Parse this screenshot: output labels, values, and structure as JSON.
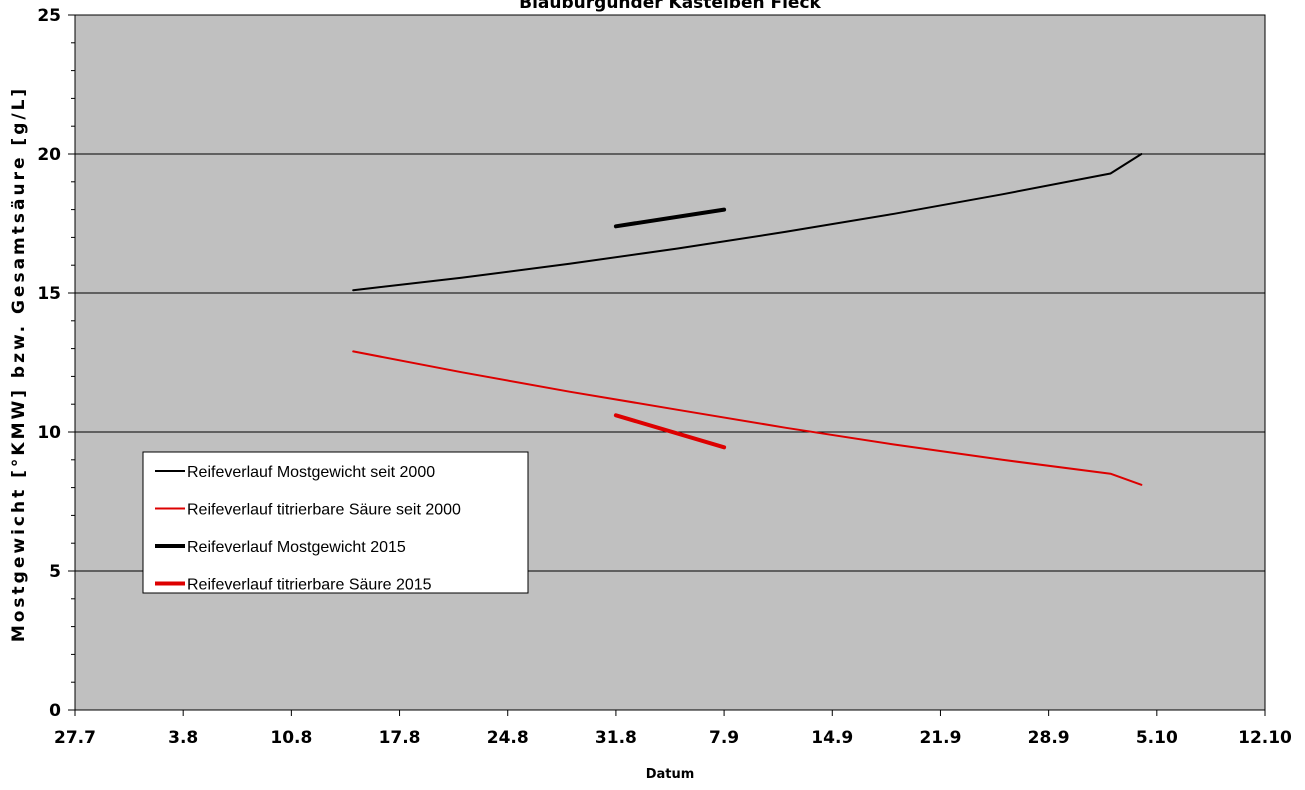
{
  "chart_data": {
    "type": "line",
    "title": "Blauburgunder Kastelben Fleck",
    "xlabel": "Datum",
    "ylabel": "Mostgewicht [°KMW] bzw. Gesamtsäure [g/L]",
    "x_type": "date",
    "x_ticks": [
      "27.7",
      "3.8",
      "10.8",
      "17.8",
      "24.8",
      "31.8",
      "7.9",
      "14.9",
      "21.9",
      "28.9",
      "5.10",
      "12.10"
    ],
    "x_tick_dates": [
      "2015-07-27",
      "2015-08-03",
      "2015-08-10",
      "2015-08-17",
      "2015-08-24",
      "2015-08-31",
      "2015-09-07",
      "2015-09-14",
      "2015-09-21",
      "2015-09-28",
      "2015-10-05",
      "2015-10-12"
    ],
    "xlim": [
      "2015-07-27",
      "2015-10-12"
    ],
    "ylim": [
      0,
      25
    ],
    "y_ticks": [
      0,
      5,
      10,
      15,
      20,
      25
    ],
    "grid": {
      "y_major": true,
      "y_minor_ticks": true
    },
    "background": "#c0c0c0",
    "legend_position": "lower-left",
    "series": [
      {
        "name": "Reifeverlauf Mostgewicht seit 2000",
        "color": "#000000",
        "style": "thin",
        "points": [
          [
            "2015-08-14",
            15.1
          ],
          [
            "2015-08-21",
            15.55
          ],
          [
            "2015-08-28",
            16.05
          ],
          [
            "2015-09-04",
            16.6
          ],
          [
            "2015-09-11",
            17.2
          ],
          [
            "2015-09-18",
            17.85
          ],
          [
            "2015-09-25",
            18.55
          ],
          [
            "2015-10-02",
            19.3
          ],
          [
            "2015-10-04",
            20.0
          ]
        ]
      },
      {
        "name": "Reifeverlauf titrierbare Säure seit 2000",
        "color": "#dd0000",
        "style": "thin",
        "points": [
          [
            "2015-08-14",
            12.9
          ],
          [
            "2015-08-21",
            12.15
          ],
          [
            "2015-08-28",
            11.45
          ],
          [
            "2015-09-04",
            10.8
          ],
          [
            "2015-09-11",
            10.15
          ],
          [
            "2015-09-18",
            9.55
          ],
          [
            "2015-09-25",
            9.0
          ],
          [
            "2015-10-02",
            8.5
          ],
          [
            "2015-10-04",
            8.1
          ]
        ]
      },
      {
        "name": "Reifeverlauf Mostgewicht 2015",
        "color": "#000000",
        "style": "thick",
        "points": [
          [
            "2015-08-31",
            17.4
          ],
          [
            "2015-09-07",
            18.0
          ]
        ]
      },
      {
        "name": "Reifeverlauf titrierbare Säure 2015",
        "color": "#dd0000",
        "style": "thick",
        "points": [
          [
            "2015-08-31",
            10.6
          ],
          [
            "2015-09-07",
            9.45
          ]
        ]
      }
    ]
  }
}
